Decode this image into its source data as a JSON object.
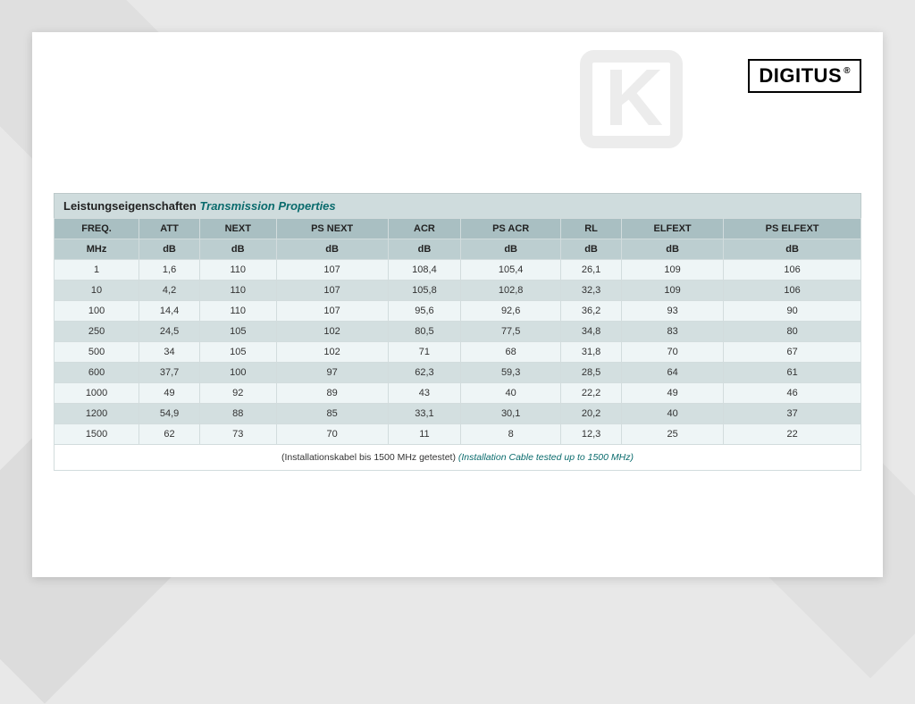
{
  "brand": {
    "logo_text": "DIGITUS",
    "logo_reg": "®"
  },
  "watermark": {
    "letter": "K"
  },
  "table": {
    "title_de": "Leistungseigenschaften",
    "title_en": "Transmission Properties",
    "columns": [
      "FREQ.",
      "ATT",
      "NEXT",
      "PS NEXT",
      "ACR",
      "PS ACR",
      "RL",
      "ELFEXT",
      "PS ELFEXT"
    ],
    "units": [
      "MHz",
      "dB",
      "dB",
      "dB",
      "dB",
      "dB",
      "dB",
      "dB",
      "dB"
    ],
    "rows": [
      [
        "1",
        "1,6",
        "110",
        "107",
        "108,4",
        "105,4",
        "26,1",
        "109",
        "106"
      ],
      [
        "10",
        "4,2",
        "110",
        "107",
        "105,8",
        "102,8",
        "32,3",
        "109",
        "106"
      ],
      [
        "100",
        "14,4",
        "110",
        "107",
        "95,6",
        "92,6",
        "36,2",
        "93",
        "90"
      ],
      [
        "250",
        "24,5",
        "105",
        "102",
        "80,5",
        "77,5",
        "34,8",
        "83",
        "80"
      ],
      [
        "500",
        "34",
        "105",
        "102",
        "71",
        "68",
        "31,8",
        "70",
        "67"
      ],
      [
        "600",
        "37,7",
        "100",
        "97",
        "62,3",
        "59,3",
        "28,5",
        "64",
        "61"
      ],
      [
        "1000",
        "49",
        "92",
        "89",
        "43",
        "40",
        "22,2",
        "49",
        "46"
      ],
      [
        "1200",
        "54,9",
        "88",
        "85",
        "33,1",
        "30,1",
        "20,2",
        "40",
        "37"
      ],
      [
        "1500",
        "62",
        "73",
        "70",
        "11",
        "8",
        "12,3",
        "25",
        "22"
      ]
    ],
    "footnote_de": "(Installationskabel bis 1500 MHz getestet)",
    "footnote_en": "(Installation Cable tested up to 1500 MHz)"
  },
  "styling": {
    "page_bg": "#ffffff",
    "body_bg": "#e8e8e8",
    "title_row_bg": "#cfdcdd",
    "header_bg": "#a9bfc2",
    "units_bg": "#bcced0",
    "row_odd_bg": "#eef5f6",
    "row_even_bg": "#d3dfe0",
    "border_color": "#d2dcdd",
    "accent_color": "#0a6b6d",
    "watermark_color": "#ececec",
    "font_size_body": 11,
    "font_size_title": 13,
    "font_size_footnote": 10.5
  }
}
